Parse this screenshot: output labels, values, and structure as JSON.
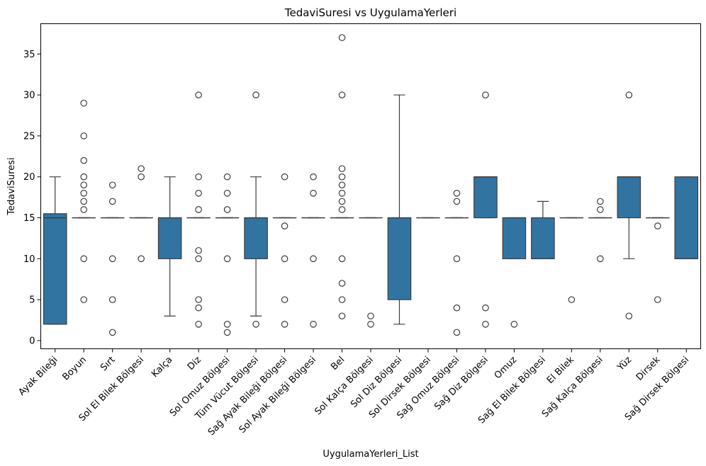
{
  "chart_data": {
    "type": "box",
    "title": "TedaviSuresi vs UygulamaYerleri",
    "xlabel": "UygulamaYerleri_List",
    "ylabel": "TedaviSuresi",
    "ylim": [
      -1,
      38.7
    ],
    "yticks": [
      0,
      5,
      10,
      15,
      20,
      25,
      30,
      35
    ],
    "grid": false,
    "legend": "none",
    "colors": {
      "box": "#3274a1",
      "line": "#3d3d3d"
    },
    "categories": [
      "Ayak Bileği",
      "Boyun",
      "Sırt",
      "Sol El Bilek Bölgesi",
      "Kalça",
      "Diz",
      "Sol Omuz Bölgesi",
      "Tüm Vücut Bölgesi",
      "Sağ Ayak Bileği Bölgesi",
      "Sol Ayak Bileği Bölgesi",
      "Bel",
      "Sol Kalça Bölgesi",
      "Sol Diz Bölgesi",
      "Sol Dirsek Bölgesi",
      "Sağ Omuz Bölgesi",
      "Sağ Diz Bölgesi",
      "Omuz",
      "Sağ El Bilek Bölgesi",
      "El Bilek",
      "Sağ Kalça Bölgesi",
      "Yüz",
      "Dirsek",
      "Sağ Dirsek Bölgesi"
    ],
    "boxes": [
      {
        "q1": 2,
        "median": 15,
        "q3": 15.5,
        "whislo": 2,
        "whishi": 20,
        "fliers": []
      },
      {
        "q1": 15,
        "median": 15,
        "q3": 15,
        "whislo": 15,
        "whishi": 15,
        "fliers": [
          29,
          25,
          22,
          20,
          19,
          18,
          17,
          16,
          10,
          5
        ]
      },
      {
        "q1": 15,
        "median": 15,
        "q3": 15,
        "whislo": 15,
        "whishi": 15,
        "fliers": [
          19,
          17,
          10,
          5,
          1
        ]
      },
      {
        "q1": 15,
        "median": 15,
        "q3": 15,
        "whislo": 15,
        "whishi": 15,
        "fliers": [
          21,
          20,
          10
        ]
      },
      {
        "q1": 10,
        "median": 15,
        "q3": 15,
        "whislo": 3,
        "whishi": 20,
        "fliers": []
      },
      {
        "q1": 15,
        "median": 15,
        "q3": 15,
        "whislo": 15,
        "whishi": 15,
        "fliers": [
          30,
          20,
          18,
          16,
          11,
          10,
          5,
          4,
          2
        ]
      },
      {
        "q1": 15,
        "median": 15,
        "q3": 15,
        "whislo": 15,
        "whishi": 15,
        "fliers": [
          20,
          18,
          16,
          10,
          2,
          1
        ]
      },
      {
        "q1": 10,
        "median": 15,
        "q3": 15,
        "whislo": 3,
        "whishi": 20,
        "fliers": [
          30,
          2
        ]
      },
      {
        "q1": 15,
        "median": 15,
        "q3": 15,
        "whislo": 15,
        "whishi": 15,
        "fliers": [
          20,
          14,
          10,
          5,
          2
        ]
      },
      {
        "q1": 15,
        "median": 15,
        "q3": 15,
        "whislo": 15,
        "whishi": 15,
        "fliers": [
          20,
          18,
          10,
          2
        ]
      },
      {
        "q1": 15,
        "median": 15,
        "q3": 15,
        "whislo": 15,
        "whishi": 15,
        "fliers": [
          37,
          30,
          21,
          20,
          19,
          18,
          17,
          16,
          10,
          7,
          5,
          3
        ]
      },
      {
        "q1": 15,
        "median": 15,
        "q3": 15,
        "whislo": 15,
        "whishi": 15,
        "fliers": [
          3,
          2
        ]
      },
      {
        "q1": 5,
        "median": 15,
        "q3": 15,
        "whislo": 2,
        "whishi": 30,
        "fliers": []
      },
      {
        "q1": 15,
        "median": 15,
        "q3": 15,
        "whislo": 15,
        "whishi": 15,
        "fliers": []
      },
      {
        "q1": 15,
        "median": 15,
        "q3": 15,
        "whislo": 15,
        "whishi": 15,
        "fliers": [
          18,
          17,
          10,
          4,
          1
        ]
      },
      {
        "q1": 15,
        "median": 20,
        "q3": 20,
        "whislo": 15,
        "whishi": 20,
        "fliers": [
          30,
          4,
          2
        ]
      },
      {
        "q1": 10,
        "median": 15,
        "q3": 15,
        "whislo": 10,
        "whishi": 15,
        "fliers": [
          2
        ]
      },
      {
        "q1": 10,
        "median": 10,
        "q3": 15,
        "whislo": 10,
        "whishi": 17,
        "fliers": []
      },
      {
        "q1": 15,
        "median": 15,
        "q3": 15,
        "whislo": 15,
        "whishi": 15,
        "fliers": [
          5
        ]
      },
      {
        "q1": 15,
        "median": 15,
        "q3": 15,
        "whislo": 15,
        "whishi": 15,
        "fliers": [
          17,
          16,
          10
        ]
      },
      {
        "q1": 15,
        "median": 20,
        "q3": 20,
        "whislo": 10,
        "whishi": 20,
        "fliers": [
          30,
          3
        ]
      },
      {
        "q1": 15,
        "median": 15,
        "q3": 15,
        "whislo": 15,
        "whishi": 15,
        "fliers": [
          14,
          5
        ]
      },
      {
        "q1": 10,
        "median": 10,
        "q3": 20,
        "whislo": 10,
        "whishi": 20,
        "fliers": []
      }
    ]
  }
}
